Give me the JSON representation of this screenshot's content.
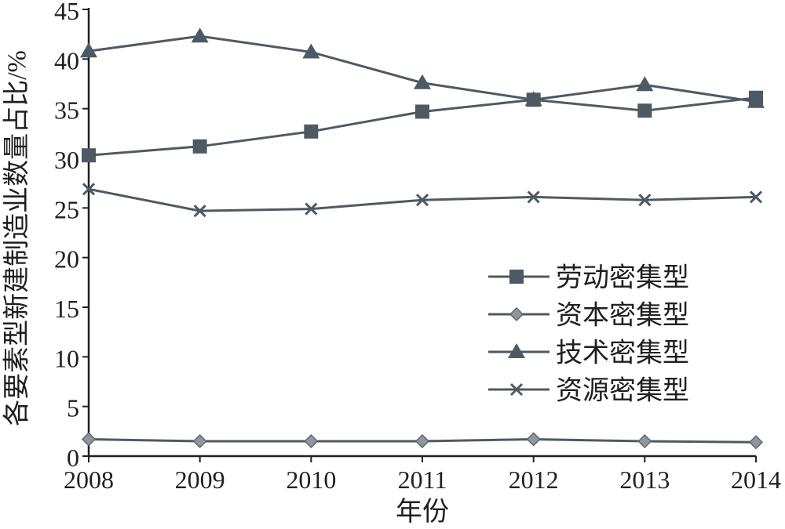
{
  "chart_data": {
    "type": "line",
    "title": "",
    "xlabel": "年份",
    "ylabel": "各要素型新建制造业数量占比/%",
    "x": [
      "2008",
      "2009",
      "2010",
      "2011",
      "2012",
      "2013",
      "2014"
    ],
    "ylim": [
      0,
      45
    ],
    "yticks": [
      0,
      5,
      10,
      15,
      20,
      25,
      30,
      35,
      40,
      45
    ],
    "grid": false,
    "legend_position": "center-right",
    "series": [
      {
        "name": "劳动密集型",
        "marker": "square",
        "values": [
          30.3,
          31.2,
          32.7,
          34.7,
          35.9,
          34.8,
          36.1
        ]
      },
      {
        "name": "资本密集型",
        "marker": "diamond",
        "values": [
          1.7,
          1.5,
          1.5,
          1.5,
          1.7,
          1.5,
          1.4
        ]
      },
      {
        "name": "技术密集型",
        "marker": "triangle",
        "values": [
          40.8,
          42.3,
          40.7,
          37.6,
          35.9,
          37.4,
          35.7
        ]
      },
      {
        "name": "资源密集型",
        "marker": "cross",
        "values": [
          26.9,
          24.7,
          24.9,
          25.8,
          26.1,
          25.8,
          26.1
        ]
      }
    ]
  },
  "colors": {
    "axis": "#1f1f1f",
    "line": "#4e5a63",
    "marker": "#4e5a63",
    "diamond_fill": "#8f979d",
    "diamond_stroke": "#5d676e"
  }
}
